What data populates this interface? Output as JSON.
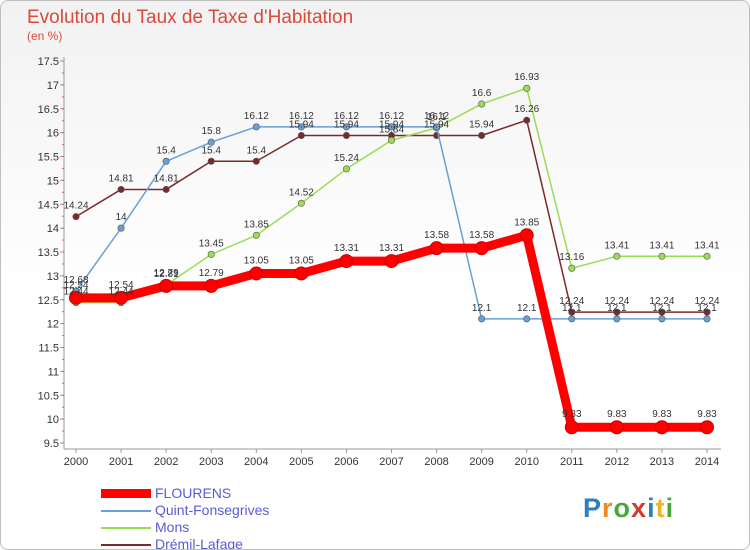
{
  "header": {
    "title": "Evolution du Taux de Taxe d'Habitation",
    "subtitle": "(en %)"
  },
  "logo": {
    "text": "Proxiti"
  },
  "chart_data": {
    "type": "line",
    "categories": [
      "2000",
      "2001",
      "2002",
      "2003",
      "2004",
      "2005",
      "2006",
      "2007",
      "2008",
      "2009",
      "2010",
      "2011",
      "2012",
      "2013",
      "2014"
    ],
    "ylim": [
      9.5,
      17.5
    ],
    "yticks": [
      9.5,
      10,
      10.5,
      11,
      11.5,
      12,
      12.5,
      13,
      13.5,
      14,
      14.5,
      15,
      15.5,
      16,
      16.5,
      17,
      17.5
    ],
    "grid": false,
    "legend_position": "bottom-left",
    "series": [
      {
        "name": "FLOURENS",
        "color": "#ff0000",
        "values": [
          12.54,
          12.54,
          12.79,
          12.79,
          13.05,
          13.05,
          13.31,
          13.31,
          13.58,
          13.58,
          13.85,
          9.83,
          9.83,
          9.83,
          9.83
        ]
      },
      {
        "name": "Quint-Fonsegrives",
        "color": "#6a9fd4",
        "values": [
          12.68,
          14,
          15.4,
          15.8,
          16.12,
          16.12,
          16.12,
          16.12,
          16.12,
          12.1,
          12.1,
          12.1,
          12.1,
          12.1,
          12.1
        ]
      },
      {
        "name": "Mons",
        "color": "#99dd55",
        "values": [
          12.44,
          12.44,
          12.81,
          13.45,
          13.85,
          14.52,
          15.24,
          15.84,
          16.1,
          16.6,
          16.93,
          13.16,
          13.41,
          13.41,
          13.41
        ]
      },
      {
        "name": "Drémil-Lafage",
        "color": "#7a2a2a",
        "values": [
          14.24,
          14.81,
          14.81,
          15.4,
          15.4,
          15.94,
          15.94,
          15.94,
          15.94,
          15.94,
          16.26,
          12.24,
          12.24,
          12.24,
          12.24
        ]
      }
    ]
  }
}
